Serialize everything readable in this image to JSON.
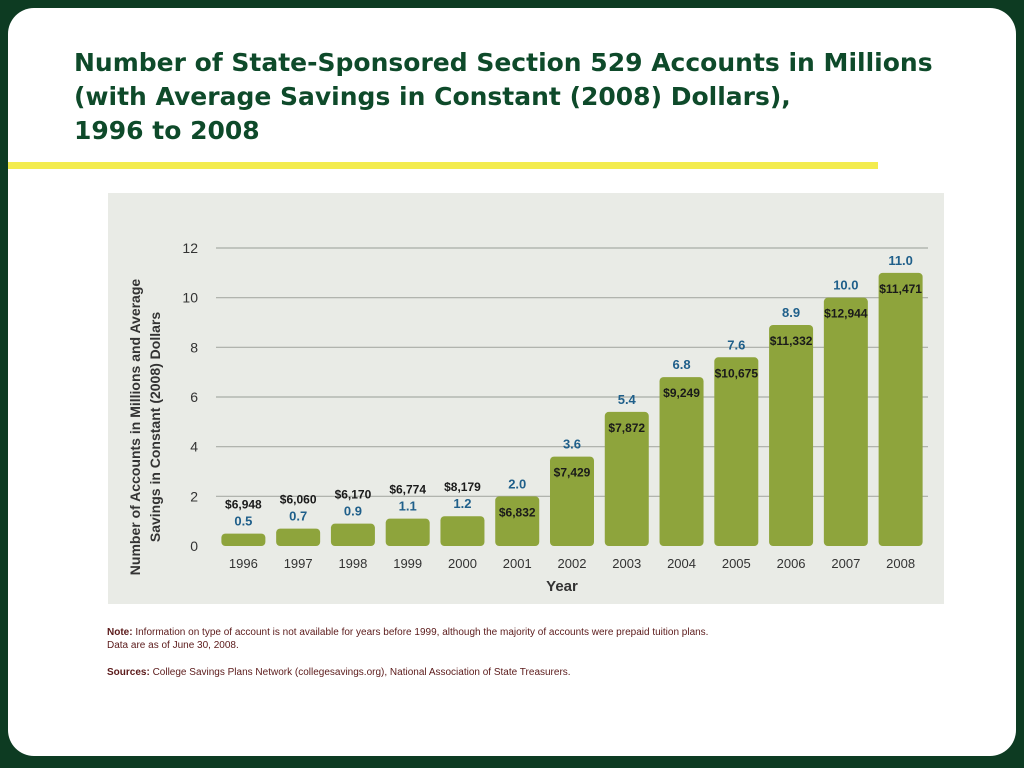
{
  "slide": {
    "title_lines": [
      "Number of State-Sponsored Section 529 Accounts in Millions",
      "(with Average Savings in Constant (2008) Dollars),",
      "1996 to 2008"
    ],
    "note_label": "Note:",
    "note_text": "Information on type of account is not available for years before 1999, although the majority of accounts were prepaid tuition plans.",
    "note_text2": "Data are as of June 30, 2008.",
    "sources_label": "Sources:",
    "sources_text": "College Savings Plans Network (collegesavings.org), National Association of State Treasurers."
  },
  "colors": {
    "background": "#0d3b22",
    "title": "#0e4a2a",
    "rule": "#f3ec4e",
    "panel": "#e9ebe6",
    "bar": "#8ea43c",
    "value_label": "#1f5f8a",
    "savings_label": "#1a1a1a",
    "notes_text": "#5b1a1a"
  },
  "chart_data": {
    "type": "bar",
    "title": "",
    "xlabel": "Year",
    "ylabel_lines": [
      "Number of Accounts in Millions and Average",
      "Savings in Constant (2008) Dollars"
    ],
    "ylim": [
      0,
      12
    ],
    "yticks": [
      0,
      2,
      4,
      6,
      8,
      10,
      12
    ],
    "grid": true,
    "categories": [
      "1996",
      "1997",
      "1998",
      "1999",
      "2000",
      "2001",
      "2002",
      "2003",
      "2004",
      "2005",
      "2006",
      "2007",
      "2008"
    ],
    "series": [
      {
        "values": [
          0.5,
          0.7,
          0.9,
          1.1,
          1.2,
          2.0,
          3.6,
          5.4,
          6.8,
          7.6,
          8.9,
          10.0,
          11.0
        ],
        "value_labels": [
          "0.5",
          "0.7",
          "0.9",
          "1.1",
          "1.2",
          "2.0",
          "3.6",
          "5.4",
          "6.8",
          "7.6",
          "8.9",
          "10.0",
          "11.0"
        ]
      }
    ],
    "savings_labels": [
      "$6,948",
      "$6,060",
      "$6,170",
      "$6,774",
      "$8,179",
      "$6,832",
      "$7,429",
      "$7,872",
      "$9,249",
      "$10,675",
      "$11,332",
      "$12,944",
      "$11,471"
    ]
  }
}
